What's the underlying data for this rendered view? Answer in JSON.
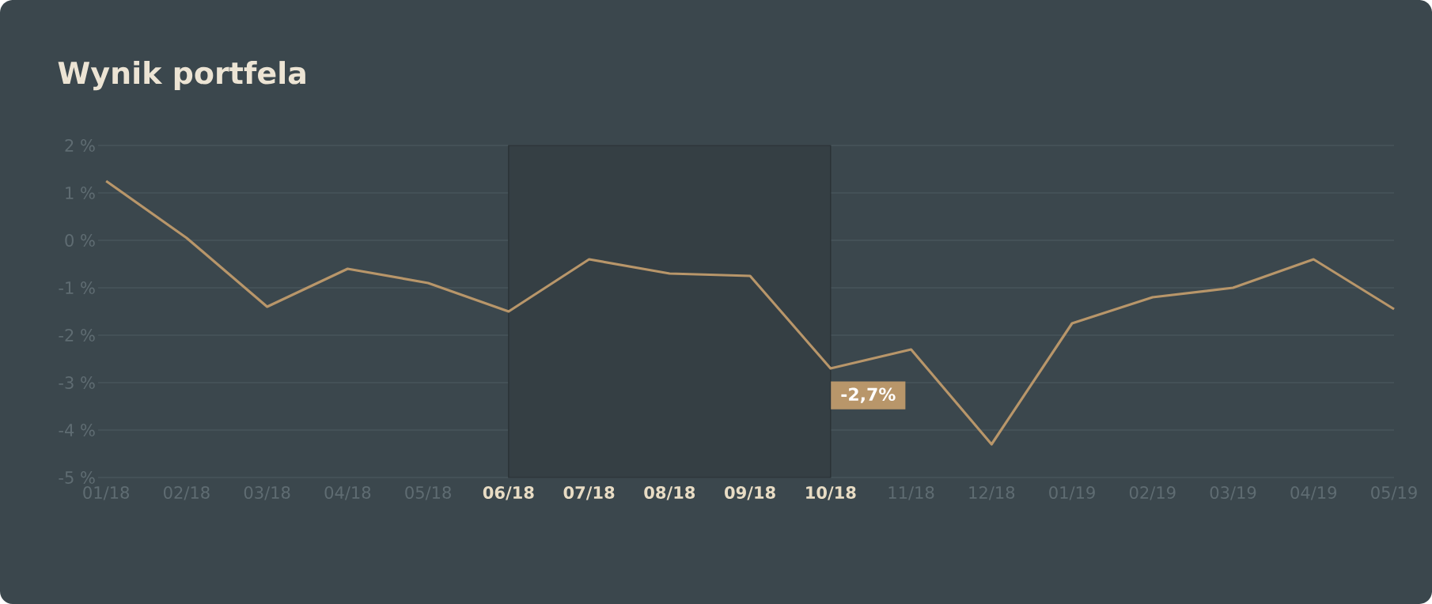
{
  "chart_data": {
    "type": "line",
    "title": "Wynik portfela",
    "categories": [
      "01/18",
      "02/18",
      "03/18",
      "04/18",
      "05/18",
      "06/18",
      "07/18",
      "08/18",
      "09/18",
      "10/18",
      "11/18",
      "12/18",
      "01/19",
      "02/19",
      "03/19",
      "04/19",
      "05/19"
    ],
    "series": [
      {
        "color": "#b8966a",
        "values": [
          1.25,
          0.05,
          -1.4,
          -0.6,
          -0.9,
          -1.5,
          -0.4,
          -0.7,
          -0.75,
          -2.7,
          -2.3,
          -4.3,
          -1.75,
          -1.2,
          -1.0,
          -0.4,
          -1.45
        ]
      }
    ],
    "ylim": [
      -5,
      2
    ],
    "yticks": [
      {
        "value": -5,
        "label": "-5 %"
      },
      {
        "value": -4,
        "label": "-4 %"
      },
      {
        "value": -3,
        "label": "-3 %"
      },
      {
        "value": -2,
        "label": "-2 %"
      },
      {
        "value": -1,
        "label": "-1 %"
      },
      {
        "value": 0,
        "label": "0 %"
      },
      {
        "value": 1,
        "label": "1 %"
      },
      {
        "value": 2,
        "label": "2 %"
      }
    ],
    "grid": "y",
    "bands": [
      {
        "axis": "x",
        "from": "06/18",
        "to": "10/18",
        "color": "#353f44"
      }
    ],
    "annotations": [
      {
        "text": "-2,7%",
        "x": "10/18",
        "y": -2.7
      }
    ]
  }
}
